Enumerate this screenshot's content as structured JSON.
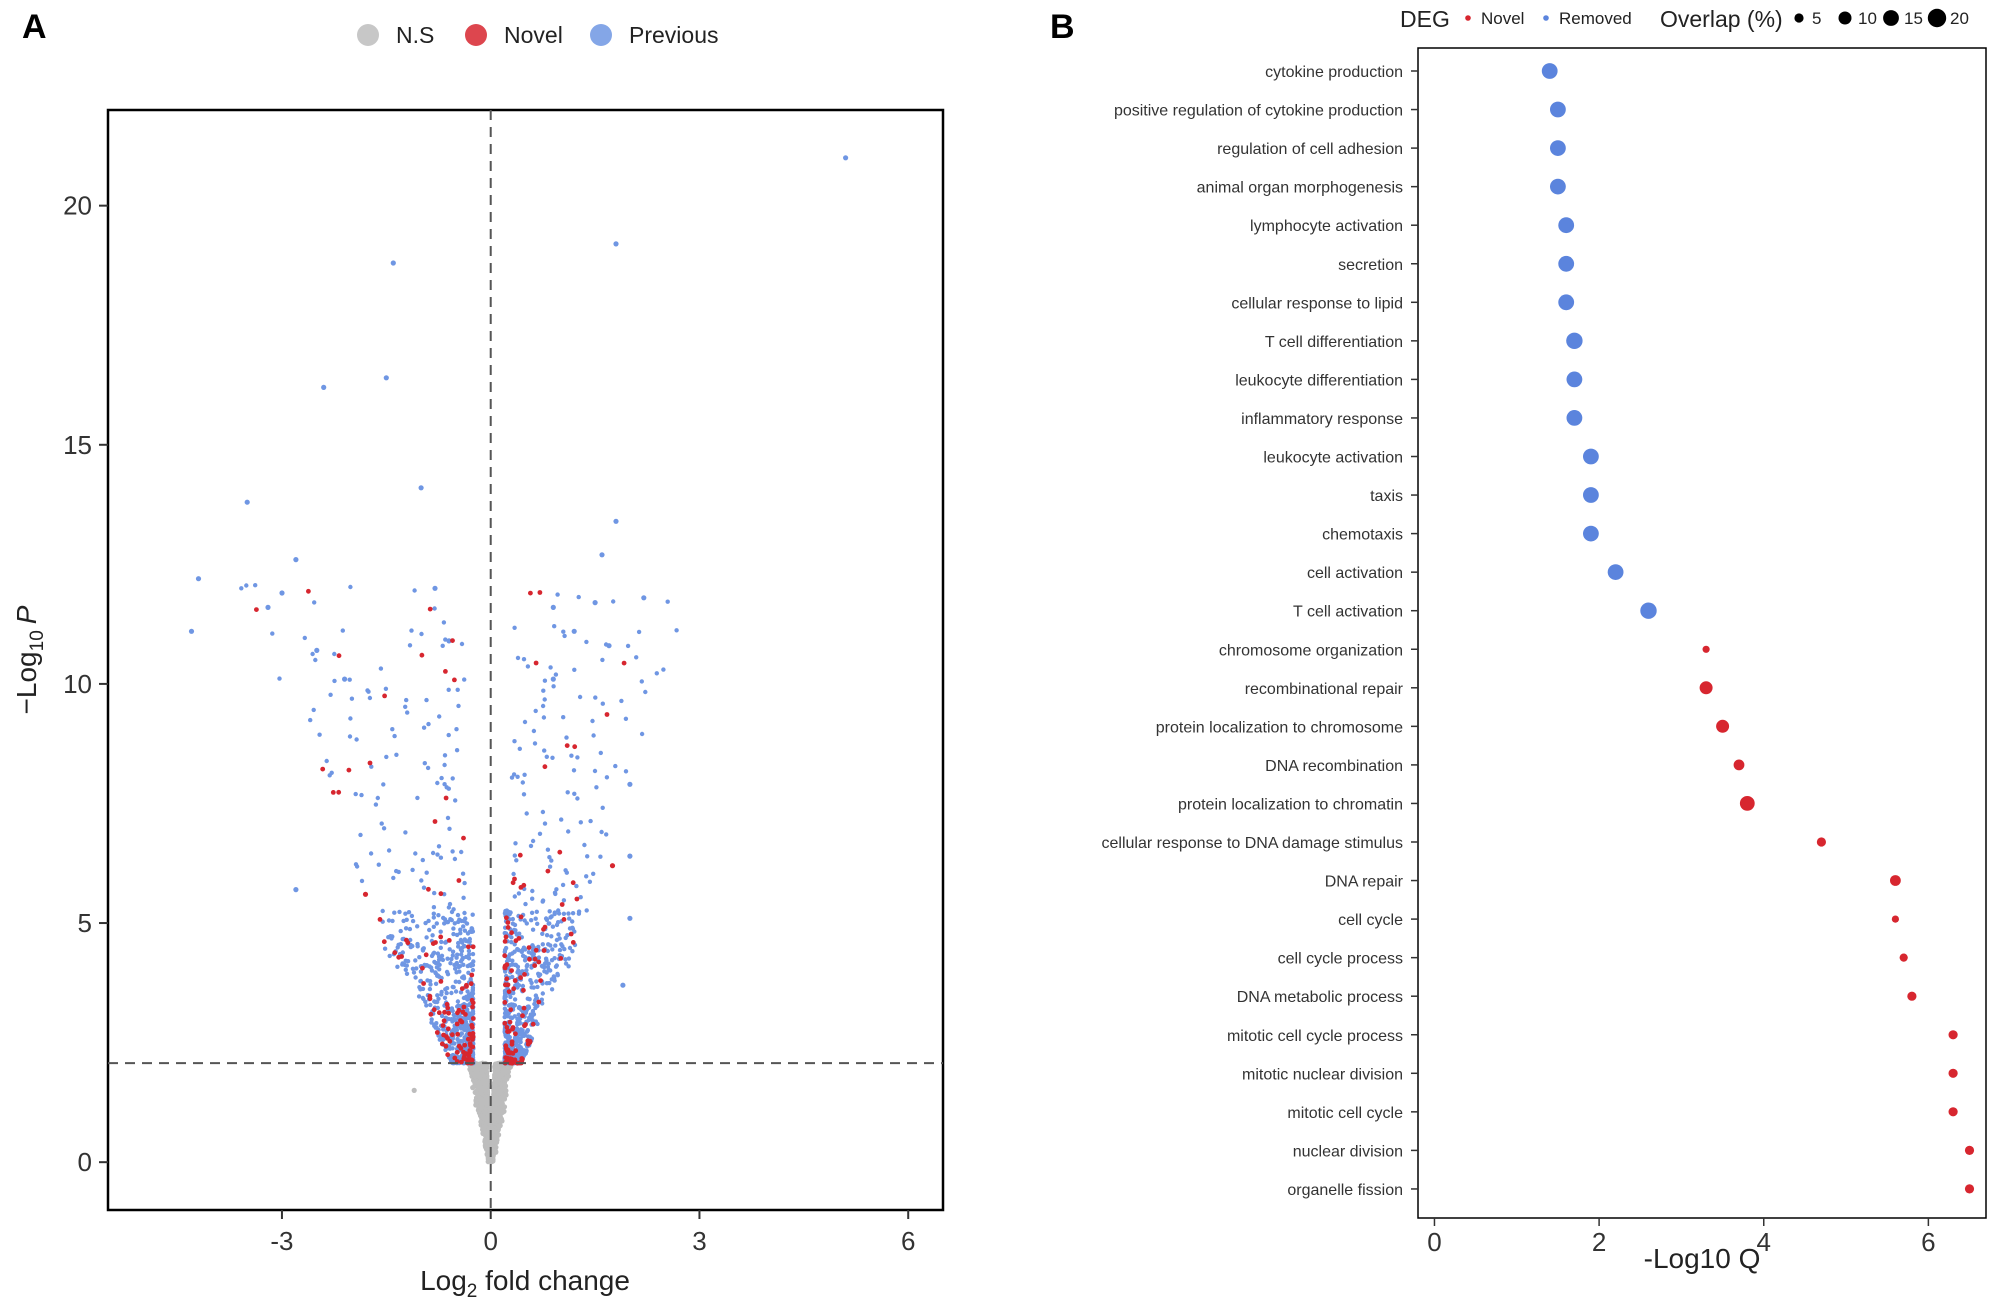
{
  "colors": {
    "ns": "#bdbdbd",
    "novel": "#d7262f",
    "previous": "#6f96e3",
    "removed": "#5b84dd",
    "frame": "#000000",
    "dashed": "#555555"
  },
  "chart_data": [
    {
      "panel": "A",
      "type": "scatter",
      "title": "",
      "xlabel_main": "Log",
      "xlabel_sub": "2",
      "xlabel_rest": " fold change",
      "ylabel_main": "−Log",
      "ylabel_sub": "10",
      "ylabel_var": "P",
      "xlim": [
        -5.5,
        6.5
      ],
      "ylim": [
        -1,
        22
      ],
      "xticks": [
        -3,
        0,
        3,
        6
      ],
      "xtick_labels": [
        "-3",
        "0",
        "3",
        "6"
      ],
      "yticks": [
        0,
        5,
        10,
        15,
        20
      ],
      "ytick_labels": [
        "0",
        "5",
        "10",
        "15",
        "20"
      ],
      "grid": false,
      "legend_position": "top",
      "thresholds": {
        "x": 0,
        "y": 2.07
      },
      "series": [
        {
          "name": "N.S",
          "color": "#bdbdbd"
        },
        {
          "name": "Novel",
          "color": "#d7262f"
        },
        {
          "name": "Previous",
          "color": "#6f96e3"
        }
      ],
      "highlight_points": [
        {
          "x": 5.1,
          "y": 21.0,
          "group": "Previous"
        },
        {
          "x": 1.8,
          "y": 19.2,
          "group": "Previous"
        },
        {
          "x": -1.4,
          "y": 18.8,
          "group": "Previous"
        },
        {
          "x": -1.5,
          "y": 16.4,
          "group": "Previous"
        },
        {
          "x": -2.4,
          "y": 16.2,
          "group": "Previous"
        },
        {
          "x": -1.0,
          "y": 14.1,
          "group": "Previous"
        },
        {
          "x": -3.5,
          "y": 13.8,
          "group": "Previous"
        },
        {
          "x": 1.8,
          "y": 13.4,
          "group": "Previous"
        },
        {
          "x": 1.6,
          "y": 12.7,
          "group": "Previous"
        },
        {
          "x": -2.8,
          "y": 12.6,
          "group": "Previous"
        },
        {
          "x": -4.2,
          "y": 12.2,
          "group": "Previous"
        },
        {
          "x": -0.8,
          "y": 12.0,
          "group": "Previous"
        },
        {
          "x": -3.0,
          "y": 11.9,
          "group": "Previous"
        },
        {
          "x": 2.2,
          "y": 11.8,
          "group": "Previous"
        },
        {
          "x": 1.5,
          "y": 11.7,
          "group": "Previous"
        },
        {
          "x": -3.2,
          "y": 11.6,
          "group": "Previous"
        },
        {
          "x": 0.9,
          "y": 11.6,
          "group": "Previous"
        },
        {
          "x": -4.3,
          "y": 11.1,
          "group": "Previous"
        },
        {
          "x": 1.2,
          "y": 11.1,
          "group": "Previous"
        },
        {
          "x": -0.6,
          "y": 10.9,
          "group": "Previous"
        },
        {
          "x": 1.7,
          "y": 10.8,
          "group": "Previous"
        },
        {
          "x": -2.5,
          "y": 10.7,
          "group": "Previous"
        },
        {
          "x": -2.1,
          "y": 10.1,
          "group": "Previous"
        },
        {
          "x": 0.9,
          "y": 10.1,
          "group": "Previous"
        },
        {
          "x": 2.0,
          "y": 7.9,
          "group": "Previous"
        },
        {
          "x": -2.8,
          "y": 5.7,
          "group": "Previous"
        },
        {
          "x": 2.0,
          "y": 6.4,
          "group": "Previous"
        },
        {
          "x": 1.9,
          "y": 3.7,
          "group": "Previous"
        },
        {
          "x": 2.0,
          "y": 5.1,
          "group": "Previous"
        },
        {
          "x": -1.1,
          "y": 1.5,
          "group": "N.S"
        },
        {
          "x": 1.75,
          "y": 6.2,
          "group": "Novel"
        },
        {
          "x": -1.8,
          "y": 5.6,
          "group": "Novel"
        }
      ]
    },
    {
      "panel": "B",
      "type": "scatter",
      "title": "",
      "xlabel": "-Log10 Q",
      "ylabel": "",
      "xlim": [
        -0.2,
        6.7
      ],
      "xticks": [
        0,
        2,
        4,
        6
      ],
      "xtick_labels": [
        "0",
        "2",
        "4",
        "6"
      ],
      "grid": false,
      "legend_position": "top",
      "legend_color_title": "DEG",
      "legend_size_title": "Overlap (%)",
      "legend_color_items": [
        {
          "name": "Novel",
          "color": "#d7262f"
        },
        {
          "name": "Removed",
          "color": "#5b84dd"
        }
      ],
      "legend_size_items": [
        {
          "label": "5",
          "value": 5
        },
        {
          "label": "10",
          "value": 10
        },
        {
          "label": "15",
          "value": 15
        },
        {
          "label": "20",
          "value": 20
        }
      ],
      "categories": [
        "cytokine production",
        "positive regulation of cytokine production",
        "regulation of cell adhesion",
        "animal organ morphogenesis",
        "lymphocyte activation",
        "secretion",
        "cellular response to lipid",
        "T cell differentiation",
        "leukocyte differentiation",
        "inflammatory response",
        "leukocyte activation",
        "taxis",
        "chemotaxis",
        "cell activation",
        "T cell activation",
        "chromosome organization",
        "recombinational repair",
        "protein localization to chromosome",
        "DNA recombination",
        "protein localization to chromatin",
        "cellular response to DNA damage stimulus",
        "DNA repair",
        "cell cycle",
        "cell cycle process",
        "DNA metabolic process",
        "mitotic cell cycle process",
        "mitotic nuclear division",
        "mitotic cell cycle",
        "nuclear division",
        "organelle fission"
      ],
      "values": [
        1.4,
        1.5,
        1.5,
        1.5,
        1.6,
        1.6,
        1.6,
        1.7,
        1.7,
        1.7,
        1.9,
        1.9,
        1.9,
        2.2,
        2.6,
        3.3,
        3.3,
        3.5,
        3.7,
        3.8,
        4.7,
        5.6,
        5.6,
        5.7,
        5.8,
        6.3,
        6.3,
        6.3,
        6.5,
        6.5
      ],
      "overlap": [
        15,
        15,
        15,
        15,
        15,
        15,
        15,
        16,
        15,
        15,
        15,
        15,
        15,
        15,
        16,
        3,
        10,
        10,
        7,
        13,
        5,
        7,
        3,
        4,
        5,
        5,
        5,
        5,
        5,
        5
      ],
      "groups": [
        "Removed",
        "Removed",
        "Removed",
        "Removed",
        "Removed",
        "Removed",
        "Removed",
        "Removed",
        "Removed",
        "Removed",
        "Removed",
        "Removed",
        "Removed",
        "Removed",
        "Removed",
        "Novel",
        "Novel",
        "Novel",
        "Novel",
        "Novel",
        "Novel",
        "Novel",
        "Novel",
        "Novel",
        "Novel",
        "Novel",
        "Novel",
        "Novel",
        "Novel",
        "Novel"
      ]
    }
  ]
}
